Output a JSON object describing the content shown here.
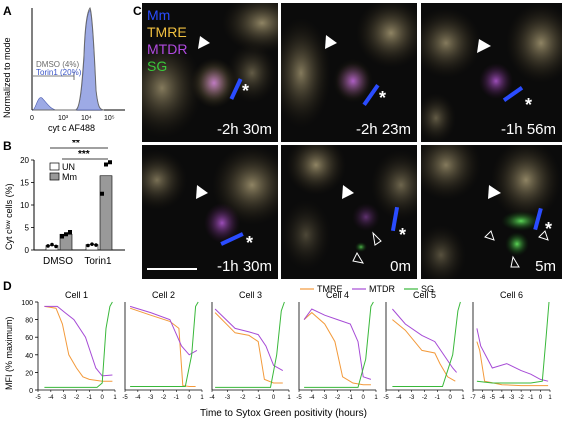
{
  "panels": {
    "a": "A",
    "b": "B",
    "c": "C",
    "d": "D"
  },
  "colors": {
    "tmre": "#f39a3b",
    "mtdr": "#a64bd6",
    "sg": "#39b83a",
    "mm": "#2a4cff",
    "hist": "#8c9be0",
    "hist_line": "#6b6b6b"
  },
  "panel_a": {
    "ylabel": "Normalized to mode",
    "xlabel": "cyt c AF488",
    "legend": [
      "DMSO (4%)",
      "Torin1 (20%)"
    ],
    "ticks": [
      "0",
      "10³",
      "10⁴",
      "10⁵"
    ]
  },
  "panel_b": {
    "ylabel": "Cyt cˡᵒʷ cells (%)",
    "legend": [
      "UN",
      "Mm"
    ],
    "stars": [
      "**",
      "***"
    ],
    "yticks": [
      "0",
      "5",
      "10",
      "15",
      "20"
    ]
  },
  "panel_c": {
    "channels": [
      "Mm",
      "TMRE",
      "MTDR",
      "SG"
    ],
    "times": [
      "-2h 30m",
      "-2h 23m",
      "-1h 56m",
      "-1h 30m",
      "0m",
      "5m"
    ],
    "asterisk": "*"
  },
  "panel_d": {
    "legend": [
      "TMRE",
      "MTDR",
      "SG"
    ],
    "ylabel": "MFI (% maximum)",
    "xlabel": "Time to Sytox Green positivity (hours)",
    "yticks": [
      "0",
      "20",
      "40",
      "60",
      "80",
      "100"
    ]
  },
  "chart_data": [
    {
      "type": "bar",
      "categories": [
        "DMSO",
        "Torin1"
      ],
      "series": [
        {
          "name": "UN",
          "values": [
            1,
            1.2
          ]
        },
        {
          "name": "Mm",
          "values": [
            3.5,
            16.5
          ]
        }
      ],
      "points": {
        "UN": [
          [
            0.9,
            1.2,
            0.8
          ],
          [
            1.0,
            1.3,
            1.1
          ]
        ],
        "Mm": [
          [
            3.0,
            3.5,
            4.0
          ],
          [
            12.5,
            19.0,
            19.5
          ]
        ]
      },
      "ylabel": "Cyt cˡᵒʷ cells (%)",
      "ylim": [
        0,
        20
      ]
    },
    {
      "type": "line",
      "series_names": [
        "TMRE",
        "MTDR",
        "SG"
      ],
      "cells": [
        {
          "title": "Cell 1",
          "xlim": [
            -5,
            1
          ],
          "xticks": [
            -5,
            -4,
            -3,
            -2,
            -1,
            0,
            1
          ],
          "tmre": [
            [
              -4.5,
              95
            ],
            [
              -3.6,
              93
            ],
            [
              -3.1,
              75
            ],
            [
              -2.6,
              40
            ],
            [
              -2.0,
              25
            ],
            [
              -1.5,
              15
            ],
            [
              -1.0,
              12
            ],
            [
              0,
              10
            ],
            [
              0.8,
              10
            ]
          ],
          "mtdr": [
            [
              -4.5,
              95
            ],
            [
              -3.5,
              95
            ],
            [
              -2.9,
              88
            ],
            [
              -2.2,
              80
            ],
            [
              -1.3,
              60
            ],
            [
              -0.5,
              25
            ],
            [
              0,
              16
            ],
            [
              0.8,
              17
            ]
          ],
          "sg": [
            [
              -4.5,
              3
            ],
            [
              -0.4,
              3
            ],
            [
              0,
              8
            ],
            [
              0.3,
              70
            ],
            [
              0.6,
              95
            ],
            [
              0.8,
              100
            ]
          ]
        },
        {
          "title": "Cell 2",
          "xlim": [
            -5,
            1
          ],
          "xticks": [
            -5,
            -4,
            -3,
            -2,
            -1,
            0,
            1
          ],
          "tmre": [
            [
              -4.6,
              93
            ],
            [
              -3,
              85
            ],
            [
              -1.5,
              78
            ],
            [
              -0.8,
              70
            ],
            [
              -0.5,
              5
            ],
            [
              0,
              4
            ],
            [
              0.5,
              4
            ]
          ],
          "mtdr": [
            [
              -4.6,
              95
            ],
            [
              -3,
              88
            ],
            [
              -1.5,
              80
            ],
            [
              -0.6,
              50
            ],
            [
              0,
              40
            ],
            [
              0.6,
              45
            ]
          ],
          "sg": [
            [
              -4.6,
              4
            ],
            [
              -0.3,
              4
            ],
            [
              0.2,
              40
            ],
            [
              0.5,
              95
            ],
            [
              0.7,
              100
            ]
          ]
        },
        {
          "title": "Cell 3",
          "xlim": [
            -4,
            1
          ],
          "xticks": [
            -4,
            -3,
            -2,
            -1,
            0,
            1
          ],
          "tmre": [
            [
              -3.8,
              88
            ],
            [
              -2.5,
              65
            ],
            [
              -1.6,
              62
            ],
            [
              -1.0,
              55
            ],
            [
              -0.6,
              12
            ],
            [
              0,
              8
            ],
            [
              0.6,
              8
            ]
          ],
          "mtdr": [
            [
              -3.8,
              92
            ],
            [
              -2.5,
              70
            ],
            [
              -1.6,
              66
            ],
            [
              -1.0,
              63
            ],
            [
              -0.5,
              50
            ],
            [
              0,
              28
            ],
            [
              0.6,
              22
            ]
          ],
          "sg": [
            [
              -3.8,
              3
            ],
            [
              -0.2,
              3
            ],
            [
              0.2,
              40
            ],
            [
              0.5,
              90
            ],
            [
              0.7,
              100
            ]
          ]
        },
        {
          "title": "Cell 4",
          "xlim": [
            -5,
            1
          ],
          "xticks": [
            -5,
            -4,
            -3,
            -2,
            -1,
            0,
            1
          ],
          "tmre": [
            [
              -4.6,
              80
            ],
            [
              -4.0,
              88
            ],
            [
              -3,
              75
            ],
            [
              -2.2,
              55
            ],
            [
              -1.6,
              15
            ],
            [
              -0.8,
              8
            ],
            [
              0,
              6
            ],
            [
              0.6,
              6
            ]
          ],
          "mtdr": [
            [
              -4.6,
              80
            ],
            [
              -4.0,
              92
            ],
            [
              -3,
              85
            ],
            [
              -2,
              80
            ],
            [
              -1,
              75
            ],
            [
              -0.4,
              55
            ],
            [
              0,
              15
            ],
            [
              0.6,
              12
            ]
          ],
          "sg": [
            [
              -4.6,
              3
            ],
            [
              -0.4,
              3
            ],
            [
              0.2,
              35
            ],
            [
              0.6,
              95
            ],
            [
              0.8,
              100
            ]
          ]
        },
        {
          "title": "Cell 5",
          "xlim": [
            -5,
            1
          ],
          "xticks": [
            -5,
            -4,
            -3,
            -2,
            -1,
            0,
            1
          ],
          "tmre": [
            [
              -4.5,
              80
            ],
            [
              -3.5,
              68
            ],
            [
              -2.2,
              45
            ],
            [
              -1.2,
              42
            ],
            [
              -0.8,
              30
            ],
            [
              -0.2,
              15
            ],
            [
              0.4,
              10
            ]
          ],
          "mtdr": [
            [
              -4.5,
              92
            ],
            [
              -3.5,
              75
            ],
            [
              -2.2,
              62
            ],
            [
              -1.2,
              55
            ],
            [
              -0.4,
              38
            ],
            [
              0.2,
              25
            ],
            [
              0.5,
              20
            ]
          ],
          "sg": [
            [
              -4.5,
              4
            ],
            [
              -0.6,
              4
            ],
            [
              0.2,
              40
            ],
            [
              0.6,
              90
            ],
            [
              0.8,
              100
            ]
          ]
        },
        {
          "title": "Cell 6",
          "xlim": [
            -7,
            1
          ],
          "xticks": [
            -7,
            -6,
            -5,
            -4,
            -3,
            -2,
            -1,
            0,
            1
          ],
          "tmre": [
            [
              -6.6,
              55
            ],
            [
              -6.3,
              45
            ],
            [
              -5.8,
              10
            ],
            [
              -4,
              6
            ],
            [
              -2,
              5
            ],
            [
              0,
              5
            ],
            [
              0.8,
              5
            ]
          ],
          "mtdr": [
            [
              -6.6,
              70
            ],
            [
              -6.2,
              50
            ],
            [
              -5,
              25
            ],
            [
              -3.5,
              30
            ],
            [
              -2,
              22
            ],
            [
              -1,
              18
            ],
            [
              0,
              12
            ],
            [
              0.8,
              10
            ]
          ],
          "sg": [
            [
              -6.6,
              10
            ],
            [
              -5,
              8
            ],
            [
              -1,
              8
            ],
            [
              0.2,
              10
            ],
            [
              0.6,
              60
            ],
            [
              0.9,
              100
            ]
          ]
        }
      ],
      "ylim": [
        0,
        100
      ]
    }
  ]
}
